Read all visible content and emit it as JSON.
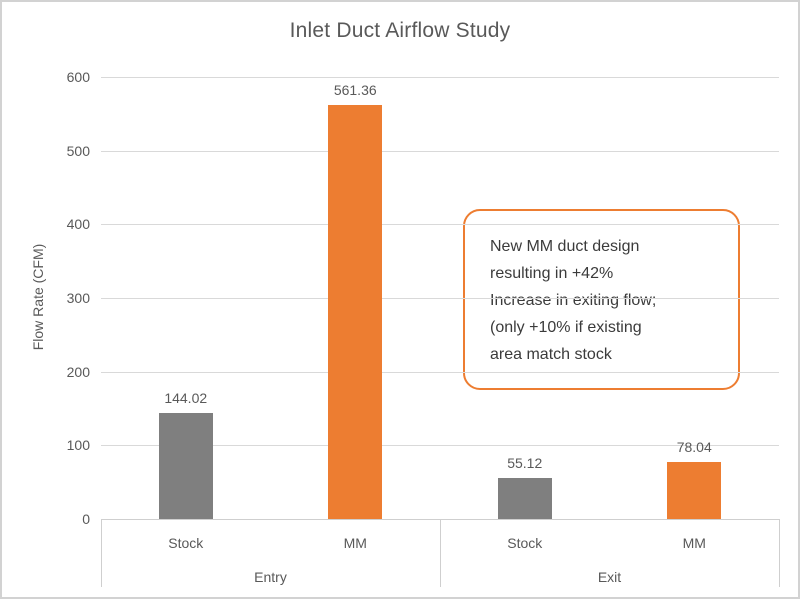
{
  "chart_data": {
    "type": "bar",
    "title": "Inlet Duct Airflow Study",
    "xlabel": "",
    "ylabel": "Flow Rate (CFM)",
    "ylim": [
      0,
      600
    ],
    "yticks": [
      0,
      100,
      200,
      300,
      400,
      500,
      600
    ],
    "grid": true,
    "legend_position": "none",
    "axis_groups": [
      "Entry",
      "Exit"
    ],
    "categories": [
      "Stock",
      "MM",
      "Stock",
      "MM"
    ],
    "points": [
      {
        "group": "Entry",
        "category": "Stock",
        "value": 144.02,
        "data_label": "144.02",
        "color": "#7F7F7F"
      },
      {
        "group": "Entry",
        "category": "MM",
        "value": 561.36,
        "data_label": "561.36",
        "color": "#ED7D31"
      },
      {
        "group": "Exit",
        "category": "Stock",
        "value": 55.12,
        "data_label": "55.12",
        "color": "#7F7F7F"
      },
      {
        "group": "Exit",
        "category": "MM",
        "value": 78.04,
        "data_label": "78.04",
        "color": "#ED7D31"
      }
    ]
  },
  "annotation": {
    "full_text": "New MM duct design resulting in +42% Increase in exiting flow; (only +10% if existing area match stock",
    "lines": [
      "New MM duct design",
      "resulting in +42%",
      "Increase in exiting flow;",
      "(only +10% if existing",
      "area match stock"
    ],
    "border_color": "#ED7D31",
    "background": "#FFFFFF"
  },
  "colors": {
    "bar_stock": "#7F7F7F",
    "bar_mm": "#ED7D31",
    "axis_text": "#595959",
    "gridline": "#D9D9D9",
    "frame_border": "#D2D2D2",
    "annotation_text": "#3B3B3B"
  }
}
